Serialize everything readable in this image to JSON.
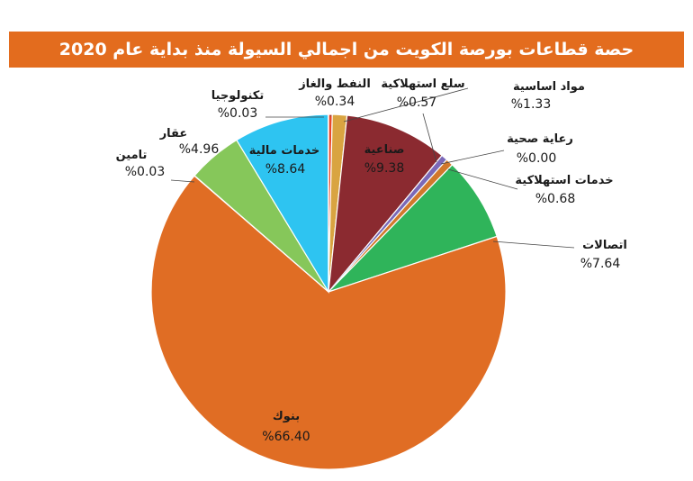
{
  "title": "حصة قطاعات بورصة الكويت من اجمالي السيولة منذ بداية عام 2020",
  "chart_data": {
    "type": "pie",
    "title": "حصة قطاعات بورصة الكويت من اجمالي السيولة منذ بداية عام 2020",
    "unit": "%",
    "slices": [
      {
        "name": "النفط والغاز",
        "value": 0.34,
        "label": "%0.34",
        "color": "#e8472a"
      },
      {
        "name": "مواد اساسية",
        "value": 1.33,
        "label": "%1.33",
        "color": "#d9a441"
      },
      {
        "name": "صناعية",
        "value": 9.38,
        "label": "%9.38",
        "color": "#8b2a30"
      },
      {
        "name": "سلع استهلاكية",
        "value": 0.57,
        "label": "%0.57",
        "color": "#7b68b8"
      },
      {
        "name": "رعاية صحية",
        "value": 0.0,
        "label": "%0.00",
        "color": "#4a7fc1"
      },
      {
        "name": "خدمات استهلاكية",
        "value": 0.68,
        "label": "%0.68",
        "color": "#d1782c"
      },
      {
        "name": "اتصالات",
        "value": 7.64,
        "label": "%7.64",
        "color": "#2fb45a"
      },
      {
        "name": "بنوك",
        "value": 66.4,
        "label": "%66.40",
        "color": "#e06d24"
      },
      {
        "name": "تامين",
        "value": 0.03,
        "label": "%0.03",
        "color": "#3f9d9d"
      },
      {
        "name": "عقار",
        "value": 4.96,
        "label": "%4.96",
        "color": "#86c75a"
      },
      {
        "name": "خدمات مالية",
        "value": 8.64,
        "label": "%8.64",
        "color": "#2ec4f1"
      },
      {
        "name": "تكنولوجيا",
        "value": 0.03,
        "label": "%0.03",
        "color": "#2c4a8a"
      }
    ]
  }
}
